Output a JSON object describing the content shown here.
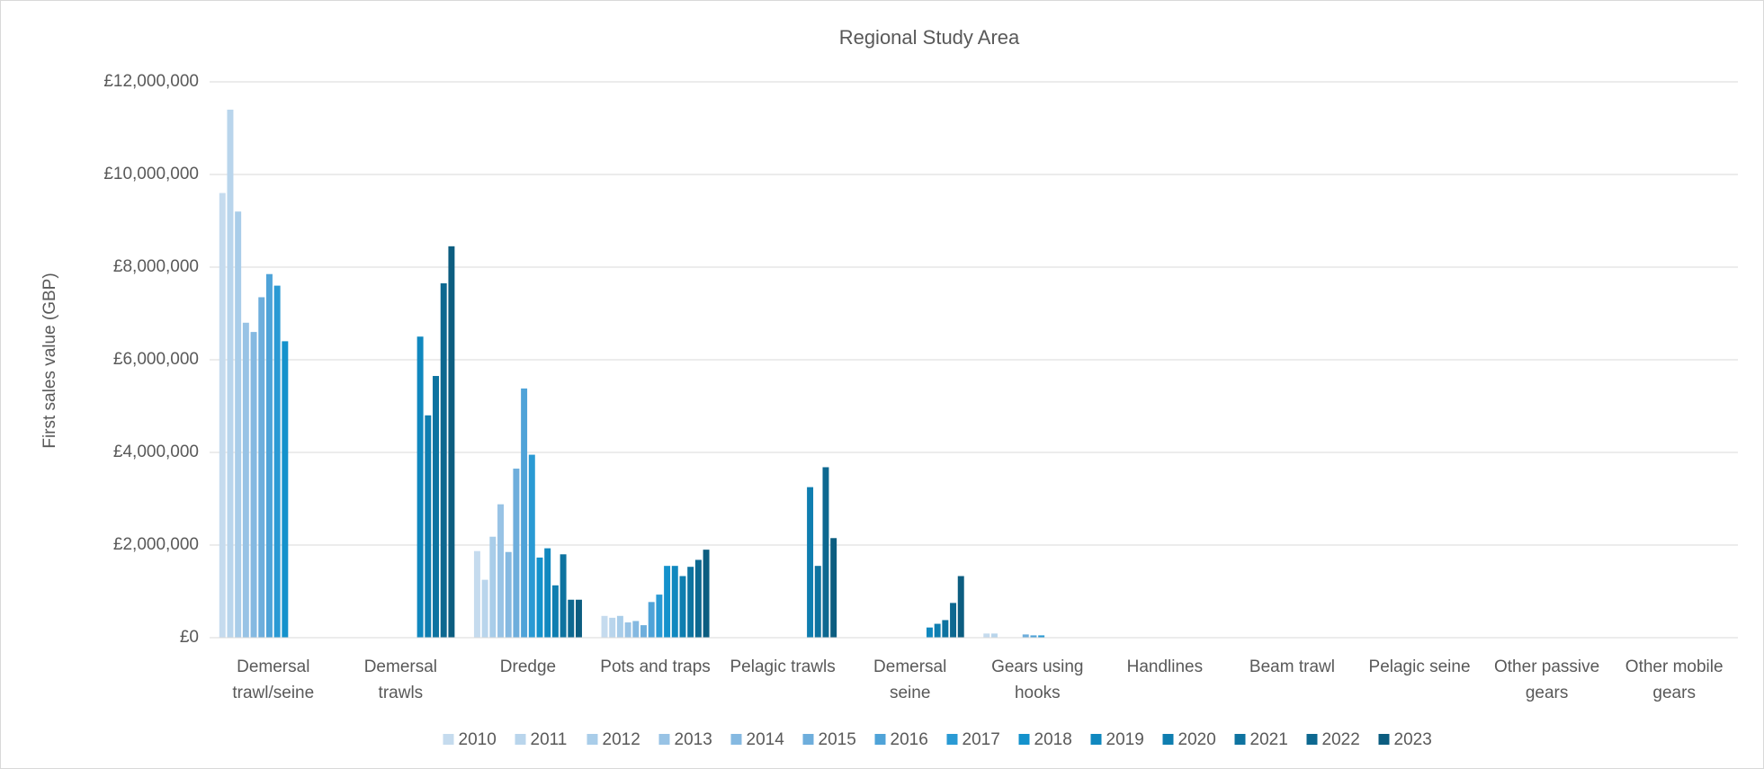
{
  "chart_data": {
    "type": "bar",
    "title": "Regional Study Area",
    "y_label": "First sales value (GBP)",
    "categories": [
      "Demersal trawl/seine",
      "Demersal trawls",
      "Dredge",
      "Pots and traps",
      "Pelagic trawls",
      "Demersal seine",
      "Gears using hooks",
      "Handlines",
      "Beam trawl",
      "Pelagic seine",
      "Other passive gears",
      "Other mobile gears"
    ],
    "series": [
      {
        "name": "2010",
        "color": "#c5dbee",
        "values": [
          9600000,
          0,
          1870000,
          470000,
          0,
          0,
          90000,
          0,
          0,
          0,
          0,
          0
        ]
      },
      {
        "name": "2011",
        "color": "#b9d5ec",
        "values": [
          11400000,
          0,
          1250000,
          430000,
          0,
          0,
          90000,
          0,
          0,
          0,
          0,
          0
        ]
      },
      {
        "name": "2012",
        "color": "#a9cde9",
        "values": [
          9200000,
          0,
          2180000,
          470000,
          0,
          0,
          0,
          0,
          0,
          0,
          0,
          0
        ]
      },
      {
        "name": "2013",
        "color": "#98c3e5",
        "values": [
          6800000,
          0,
          2880000,
          330000,
          0,
          0,
          0,
          0,
          0,
          0,
          0,
          0
        ]
      },
      {
        "name": "2014",
        "color": "#85b9e1",
        "values": [
          6600000,
          0,
          1850000,
          360000,
          0,
          0,
          0,
          0,
          0,
          0,
          0,
          0
        ]
      },
      {
        "name": "2015",
        "color": "#6eaedc",
        "values": [
          7350000,
          0,
          3650000,
          270000,
          0,
          0,
          70000,
          0,
          0,
          0,
          0,
          0
        ]
      },
      {
        "name": "2016",
        "color": "#4fa3d8",
        "values": [
          7850000,
          0,
          5380000,
          770000,
          0,
          0,
          50000,
          0,
          0,
          0,
          0,
          0
        ]
      },
      {
        "name": "2017",
        "color": "#2a9ad4",
        "values": [
          7600000,
          0,
          3950000,
          930000,
          0,
          0,
          50000,
          0,
          0,
          0,
          0,
          0
        ]
      },
      {
        "name": "2018",
        "color": "#1492cc",
        "values": [
          6400000,
          0,
          1730000,
          1550000,
          0,
          0,
          0,
          0,
          0,
          0,
          0,
          0
        ]
      },
      {
        "name": "2019",
        "color": "#1088bf",
        "values": [
          0,
          6500000,
          1930000,
          1550000,
          0,
          220000,
          0,
          0,
          0,
          0,
          0,
          0
        ]
      },
      {
        "name": "2020",
        "color": "#0f7eb0",
        "values": [
          0,
          4800000,
          1130000,
          1330000,
          3250000,
          300000,
          0,
          0,
          0,
          0,
          0,
          0
        ]
      },
      {
        "name": "2021",
        "color": "#0e73a0",
        "values": [
          0,
          5650000,
          1800000,
          1530000,
          1550000,
          380000,
          0,
          0,
          0,
          0,
          0,
          0
        ]
      },
      {
        "name": "2022",
        "color": "#0d6890",
        "values": [
          0,
          7650000,
          820000,
          1680000,
          3680000,
          750000,
          0,
          0,
          0,
          0,
          0,
          0
        ]
      },
      {
        "name": "2023",
        "color": "#0c5d80",
        "values": [
          0,
          8450000,
          820000,
          1900000,
          2150000,
          1330000,
          0,
          0,
          0,
          0,
          0,
          0
        ]
      }
    ],
    "ylim": [
      0,
      12000000
    ],
    "yticks": [
      {
        "value": 0,
        "label": "£0"
      },
      {
        "value": 2000000,
        "label": "£2,000,000"
      },
      {
        "value": 4000000,
        "label": "£4,000,000"
      },
      {
        "value": 6000000,
        "label": "£6,000,000"
      },
      {
        "value": 8000000,
        "label": "£8,000,000"
      },
      {
        "value": 10000000,
        "label": "£10,000,000"
      },
      {
        "value": 12000000,
        "label": "£12,000,000"
      }
    ],
    "grid": true,
    "legend": "bottom"
  }
}
